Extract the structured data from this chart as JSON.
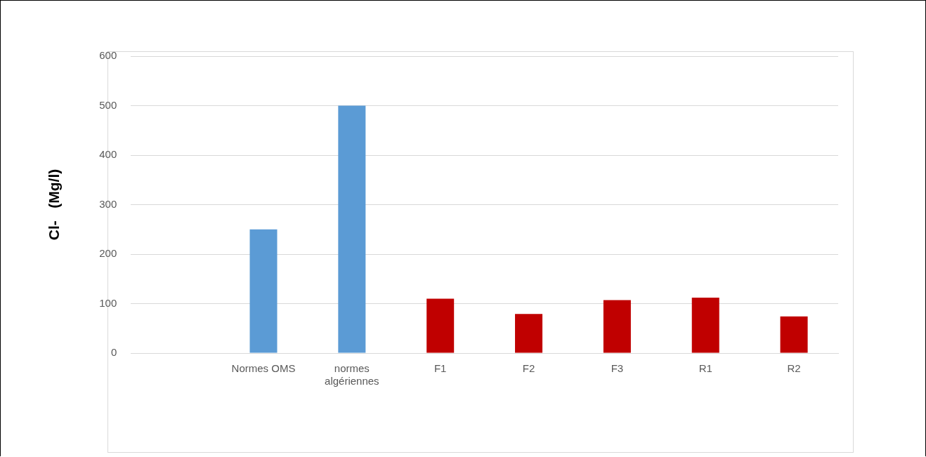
{
  "chart_data": {
    "type": "bar",
    "ylabel": "Cl-   (Mg/l)",
    "categories": [
      null,
      "Normes OMS",
      "normes algériennes",
      "F1",
      "F2",
      "F3",
      "R1",
      "R2"
    ],
    "values": [
      null,
      250,
      500,
      110,
      79,
      107,
      112,
      74
    ],
    "colors": [
      "#5b9bd5",
      "#5b9bd5",
      "#5b9bd5",
      "#c00000",
      "#c00000",
      "#c00000",
      "#c00000",
      "#c00000"
    ],
    "ylim": [
      0,
      600
    ],
    "yticks": [
      0,
      100,
      200,
      300,
      400,
      500,
      600
    ],
    "grid": "y",
    "legend": false
  }
}
